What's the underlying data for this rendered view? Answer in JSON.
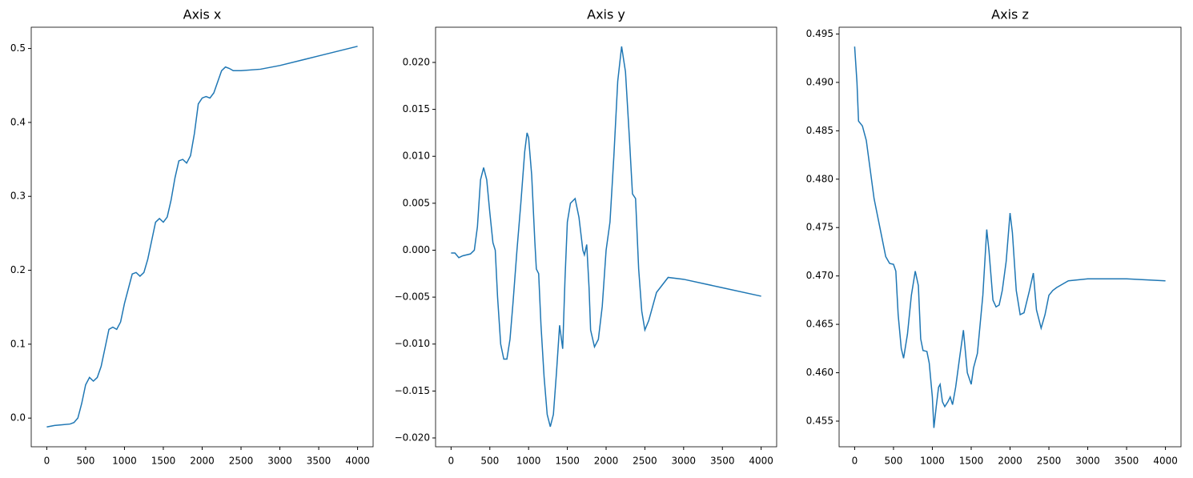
{
  "chart_data": [
    {
      "type": "line",
      "title": "Axis x",
      "color": "#1f77b4",
      "x": [
        0,
        100,
        200,
        300,
        350,
        400,
        450,
        500,
        550,
        600,
        650,
        700,
        750,
        800,
        850,
        900,
        950,
        1000,
        1050,
        1100,
        1150,
        1200,
        1250,
        1300,
        1350,
        1400,
        1450,
        1500,
        1550,
        1600,
        1650,
        1700,
        1750,
        1800,
        1850,
        1900,
        1950,
        2000,
        2050,
        2100,
        2150,
        2200,
        2250,
        2300,
        2350,
        2400,
        2500,
        2750,
        3000,
        3500,
        4000
      ],
      "values": [
        -0.012,
        -0.01,
        -0.009,
        -0.008,
        -0.006,
        0.0,
        0.02,
        0.045,
        0.055,
        0.05,
        0.055,
        0.07,
        0.095,
        0.12,
        0.123,
        0.12,
        0.13,
        0.155,
        0.175,
        0.195,
        0.197,
        0.192,
        0.197,
        0.215,
        0.24,
        0.265,
        0.27,
        0.265,
        0.272,
        0.295,
        0.325,
        0.348,
        0.35,
        0.345,
        0.355,
        0.385,
        0.425,
        0.433,
        0.435,
        0.433,
        0.44,
        0.455,
        0.47,
        0.475,
        0.473,
        0.47,
        0.47,
        0.472,
        0.477,
        0.49,
        0.503
      ],
      "xlim": [
        -200,
        4200
      ],
      "xticks": [
        0,
        500,
        1000,
        1500,
        2000,
        2500,
        3000,
        3500,
        4000
      ],
      "ylim": [
        -0.0388,
        0.5288
      ],
      "yticks": [
        {
          "value": 0,
          "label": "0.0"
        },
        0.1,
        0.2,
        0.3,
        0.4,
        0.5
      ]
    },
    {
      "type": "line",
      "title": "Axis y",
      "color": "#1f77b4",
      "x": [
        0,
        50,
        100,
        150,
        250,
        300,
        340,
        380,
        420,
        460,
        500,
        540,
        570,
        600,
        640,
        680,
        720,
        760,
        800,
        850,
        900,
        950,
        980,
        1000,
        1040,
        1080,
        1100,
        1130,
        1160,
        1200,
        1240,
        1280,
        1320,
        1360,
        1400,
        1440,
        1470,
        1500,
        1540,
        1600,
        1650,
        1700,
        1720,
        1750,
        1780,
        1800,
        1850,
        1900,
        1950,
        2000,
        2050,
        2100,
        2150,
        2200,
        2250,
        2300,
        2340,
        2380,
        2420,
        2460,
        2500,
        2550,
        2650,
        2800,
        3000,
        3500,
        4000
      ],
      "values": [
        -0.0003,
        -0.0003,
        -0.0008,
        -0.0006,
        -0.0004,
        0.0,
        0.0025,
        0.0075,
        0.0088,
        0.0075,
        0.004,
        0.0008,
        0.0,
        -0.005,
        -0.01,
        -0.0116,
        -0.0116,
        -0.0095,
        -0.0055,
        0.0,
        0.005,
        0.0105,
        0.0125,
        0.012,
        0.008,
        0.001,
        -0.002,
        -0.0025,
        -0.008,
        -0.0135,
        -0.0175,
        -0.0188,
        -0.0175,
        -0.013,
        -0.008,
        -0.0105,
        -0.003,
        0.003,
        0.005,
        0.0055,
        0.0035,
        0.0,
        -0.0005,
        0.0006,
        -0.004,
        -0.0085,
        -0.0103,
        -0.0095,
        -0.006,
        0.0,
        0.003,
        0.01,
        0.018,
        0.0217,
        0.019,
        0.012,
        0.006,
        0.0055,
        -0.002,
        -0.0065,
        -0.0085,
        -0.0075,
        -0.0045,
        -0.0029,
        -0.0031,
        -0.004,
        -0.0049
      ],
      "xlim": [
        -200,
        4200
      ],
      "xticks": [
        0,
        500,
        1000,
        1500,
        2000,
        2500,
        3000,
        3500,
        4000
      ],
      "ylim": [
        -0.02094,
        0.02375
      ],
      "yticks": [
        {
          "value": -0.02,
          "label": "−0.020"
        },
        {
          "value": -0.015,
          "label": "−0.015"
        },
        {
          "value": -0.01,
          "label": "−0.010"
        },
        {
          "value": -0.005,
          "label": "−0.005"
        },
        {
          "value": 0,
          "label": "0.000"
        },
        0.005,
        {
          "value": 0.01,
          "label": "0.010"
        },
        0.015,
        {
          "value": 0.02,
          "label": "0.020"
        }
      ]
    },
    {
      "type": "line",
      "title": "Axis z",
      "color": "#1f77b4",
      "x": [
        0,
        30,
        50,
        100,
        150,
        200,
        250,
        300,
        350,
        400,
        450,
        500,
        530,
        560,
        600,
        630,
        680,
        730,
        780,
        820,
        850,
        880,
        930,
        960,
        1000,
        1020,
        1050,
        1080,
        1100,
        1130,
        1160,
        1200,
        1230,
        1260,
        1300,
        1350,
        1400,
        1450,
        1500,
        1530,
        1580,
        1650,
        1700,
        1730,
        1780,
        1820,
        1860,
        1900,
        1950,
        2000,
        2030,
        2080,
        2130,
        2180,
        2250,
        2300,
        2340,
        2400,
        2450,
        2500,
        2550,
        2600,
        2750,
        3000,
        3500,
        4000
      ],
      "values": [
        0.4937,
        0.49,
        0.486,
        0.4855,
        0.484,
        0.481,
        0.478,
        0.476,
        0.474,
        0.472,
        0.4713,
        0.4712,
        0.4705,
        0.466,
        0.4625,
        0.4615,
        0.464,
        0.468,
        0.4705,
        0.469,
        0.4635,
        0.4623,
        0.4622,
        0.461,
        0.4575,
        0.4543,
        0.4565,
        0.4585,
        0.4588,
        0.457,
        0.4565,
        0.457,
        0.4575,
        0.4567,
        0.4585,
        0.4615,
        0.4644,
        0.46,
        0.4588,
        0.4605,
        0.462,
        0.468,
        0.4748,
        0.4725,
        0.4675,
        0.4668,
        0.467,
        0.4685,
        0.4715,
        0.4765,
        0.4745,
        0.4685,
        0.466,
        0.4662,
        0.4685,
        0.4703,
        0.4665,
        0.4646,
        0.466,
        0.468,
        0.4685,
        0.4688,
        0.4695,
        0.4697,
        0.4697,
        0.4695
      ],
      "xlim": [
        -200,
        4200
      ],
      "xticks": [
        0,
        500,
        1000,
        1500,
        2000,
        2500,
        3000,
        3500,
        4000
      ],
      "ylim": [
        0.45235,
        0.4957
      ],
      "yticks": [
        0.455,
        {
          "value": 0.46,
          "label": "0.460"
        },
        0.465,
        {
          "value": 0.47,
          "label": "0.470"
        },
        0.475,
        {
          "value": 0.48,
          "label": "0.480"
        },
        0.485,
        {
          "value": 0.49,
          "label": "0.490"
        },
        0.495
      ]
    }
  ]
}
